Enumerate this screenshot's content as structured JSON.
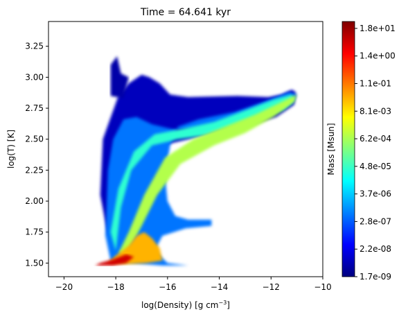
{
  "chart_data": {
    "type": "heatmap",
    "title": "Time = 64.641 kyr",
    "xlabel": "log(Density) [g cm",
    "xlabel_sup": "−3",
    "xlabel_end": "]",
    "ylabel": "log(T) [K]",
    "xlim": [
      -20.6,
      -10
    ],
    "ylim": [
      1.39,
      3.45
    ],
    "x_ticks": [
      -20,
      -18,
      -16,
      -14,
      -12,
      -10
    ],
    "x_tick_labels": [
      "−20",
      "−18",
      "−16",
      "−14",
      "−12",
      "−10"
    ],
    "y_ticks": [
      1.5,
      1.75,
      2.0,
      2.25,
      2.5,
      2.75,
      3.0,
      3.25
    ],
    "y_tick_labels": [
      "1.50",
      "1.75",
      "2.00",
      "2.25",
      "2.50",
      "2.75",
      "3.00",
      "3.25"
    ],
    "grid": false,
    "colormap": "jet",
    "colorbar": {
      "label": "Mass [Msun]",
      "scale": "log",
      "range": [
        "1.7e-09",
        "2.4e+02"
      ],
      "tick_labels": [
        "1.7e-09",
        "2.2e-08",
        "2.8e-07",
        "3.7e-06",
        "4.8e-05",
        "6.2e-04",
        "8.1e-03",
        "1.1e-01",
        "1.4e+00",
        "1.8e+01"
      ]
    },
    "regions": [
      {
        "name": "upper-filament",
        "level": 0.06,
        "polygon": [
          [
            -17.9,
            2.85
          ],
          [
            -17.5,
            2.95
          ],
          [
            -17.0,
            3.02
          ],
          [
            -16.7,
            3.0
          ],
          [
            -16.3,
            2.95
          ],
          [
            -15.9,
            2.86
          ],
          [
            -15.2,
            2.84
          ],
          [
            -13.3,
            2.85
          ],
          [
            -12.1,
            2.84
          ],
          [
            -11.6,
            2.86
          ],
          [
            -11.2,
            2.9
          ],
          [
            -11.05,
            2.88
          ],
          [
            -11.1,
            2.78
          ],
          [
            -11.8,
            2.68
          ],
          [
            -12.8,
            2.62
          ],
          [
            -14.0,
            2.56
          ],
          [
            -15.2,
            2.5
          ],
          [
            -16.2,
            2.45
          ],
          [
            -16.6,
            2.36
          ],
          [
            -16.7,
            2.05
          ],
          [
            -16.9,
            1.9
          ],
          [
            -17.6,
            1.8
          ],
          [
            -18.3,
            1.72
          ],
          [
            -18.6,
            2.05
          ],
          [
            -18.5,
            2.5
          ]
        ]
      },
      {
        "name": "upper-plume",
        "level": 0.04,
        "polygon": [
          [
            -18.2,
            2.85
          ],
          [
            -18.2,
            3.1
          ],
          [
            -17.95,
            3.17
          ],
          [
            -17.8,
            3.03
          ],
          [
            -17.5,
            3.0
          ],
          [
            -17.7,
            2.83
          ]
        ]
      },
      {
        "name": "cloud-body",
        "level": 0.24,
        "polygon": [
          [
            -18.4,
            1.72
          ],
          [
            -18.3,
            2.25
          ],
          [
            -18.1,
            2.5
          ],
          [
            -17.7,
            2.66
          ],
          [
            -17.2,
            2.68
          ],
          [
            -16.6,
            2.62
          ],
          [
            -15.8,
            2.58
          ],
          [
            -14.8,
            2.58
          ],
          [
            -13.6,
            2.62
          ],
          [
            -12.6,
            2.67
          ],
          [
            -11.8,
            2.72
          ],
          [
            -11.2,
            2.78
          ],
          [
            -11.0,
            2.86
          ],
          [
            -11.3,
            2.88
          ],
          [
            -12.3,
            2.8
          ],
          [
            -13.4,
            2.72
          ],
          [
            -14.8,
            2.66
          ],
          [
            -15.6,
            2.6
          ],
          [
            -15.9,
            2.45
          ],
          [
            -16.1,
            2.2
          ],
          [
            -16.0,
            2.0
          ],
          [
            -15.7,
            1.88
          ],
          [
            -15.2,
            1.85
          ],
          [
            -14.3,
            1.85
          ],
          [
            -14.3,
            1.8
          ],
          [
            -15.3,
            1.78
          ],
          [
            -16.2,
            1.72
          ],
          [
            -16.5,
            1.6
          ],
          [
            -16.0,
            1.5
          ],
          [
            -15.2,
            1.48
          ],
          [
            -16.2,
            1.48
          ],
          [
            -17.4,
            1.5
          ],
          [
            -18.2,
            1.52
          ]
        ]
      },
      {
        "name": "warm-ridge",
        "level": 0.42,
        "polygon": [
          [
            -18.0,
            1.6
          ],
          [
            -17.8,
            1.95
          ],
          [
            -17.4,
            2.25
          ],
          [
            -16.6,
            2.45
          ],
          [
            -15.6,
            2.5
          ],
          [
            -14.5,
            2.53
          ],
          [
            -13.4,
            2.6
          ],
          [
            -12.4,
            2.67
          ],
          [
            -11.5,
            2.74
          ],
          [
            -11.1,
            2.82
          ],
          [
            -11.2,
            2.86
          ],
          [
            -11.9,
            2.82
          ],
          [
            -12.9,
            2.74
          ],
          [
            -14.2,
            2.64
          ],
          [
            -15.5,
            2.58
          ],
          [
            -16.5,
            2.54
          ],
          [
            -17.3,
            2.4
          ],
          [
            -17.9,
            2.1
          ],
          [
            -18.2,
            1.75
          ]
        ]
      },
      {
        "name": "hot-diagonal",
        "level": 0.55,
        "polygon": [
          [
            -17.6,
            1.56
          ],
          [
            -17.0,
            1.8
          ],
          [
            -16.4,
            2.05
          ],
          [
            -15.5,
            2.3
          ],
          [
            -14.2,
            2.45
          ],
          [
            -13.0,
            2.55
          ],
          [
            -11.9,
            2.68
          ],
          [
            -11.1,
            2.8
          ],
          [
            -11.0,
            2.86
          ],
          [
            -11.6,
            2.8
          ],
          [
            -12.6,
            2.7
          ],
          [
            -13.8,
            2.6
          ],
          [
            -15.0,
            2.5
          ],
          [
            -16.1,
            2.35
          ],
          [
            -16.9,
            2.05
          ],
          [
            -17.5,
            1.75
          ],
          [
            -17.9,
            1.58
          ]
        ]
      },
      {
        "name": "dense-core",
        "level": 0.7,
        "polygon": [
          [
            -18.3,
            1.5
          ],
          [
            -18.0,
            1.56
          ],
          [
            -17.5,
            1.64
          ],
          [
            -17.2,
            1.72
          ],
          [
            -16.9,
            1.75
          ],
          [
            -16.6,
            1.7
          ],
          [
            -16.3,
            1.62
          ],
          [
            -16.2,
            1.52
          ],
          [
            -16.8,
            1.5
          ],
          [
            -17.6,
            1.49
          ]
        ]
      },
      {
        "name": "core-peak",
        "level": 0.92,
        "polygon": [
          [
            -18.8,
            1.48
          ],
          [
            -18.1,
            1.48
          ],
          [
            -17.6,
            1.5
          ],
          [
            -17.3,
            1.55
          ],
          [
            -17.6,
            1.57
          ],
          [
            -18.1,
            1.53
          ],
          [
            -18.6,
            1.5
          ]
        ]
      }
    ]
  }
}
